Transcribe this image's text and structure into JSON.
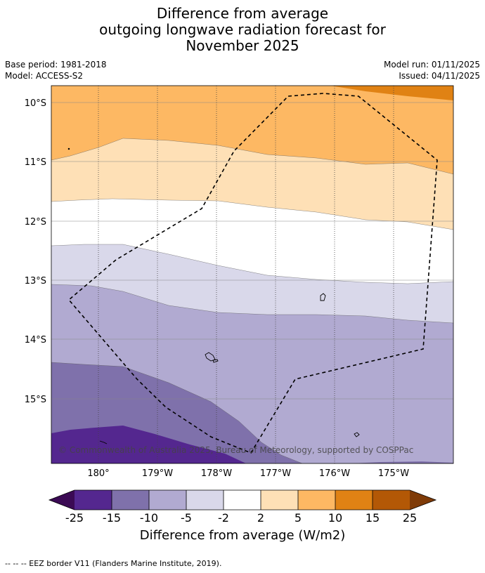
{
  "title": {
    "line1": "Difference from average",
    "line2": "outgoing longwave radiation forecast for",
    "line3": "November 2025"
  },
  "meta": {
    "base_period": "Base period: 1981-2018",
    "model": "Model: ACCESS-S2",
    "model_run": "Model run: 01/11/2025",
    "issued": "Issued: 04/11/2025"
  },
  "map": {
    "lat_labels": [
      "10°S",
      "11°S",
      "12°S",
      "13°S",
      "14°S",
      "15°S"
    ],
    "lon_labels": [
      "180°",
      "179°W",
      "178°W",
      "177°W",
      "176°W",
      "175°W"
    ],
    "copyright": "© Commonwealth of Australia 2025, Bureau of Meteorology, supported by COSPPac",
    "colors": {
      "neg25": "#3b0a54",
      "neg15_25": "#54278f",
      "neg10_15": "#7f71ab",
      "neg5_10": "#b1aad1",
      "neg2_5": "#d9d8ea",
      "neutral": "#ffffff",
      "pos2_5": "#fee0b6",
      "pos5_10": "#fdb863",
      "pos10_15": "#e08214",
      "pos15_25": "#b35806",
      "pos25": "#7f3b08"
    }
  },
  "colorbar": {
    "tick_labels": [
      "-25",
      "-15",
      "-10",
      "-5",
      "-2",
      "2",
      "5",
      "10",
      "15",
      "25"
    ],
    "title": "Difference from average (W/m2)"
  },
  "footer": {
    "legend_text": "--  --  -- EEZ border V11 (Flanders Marine Institute, 2019)."
  }
}
